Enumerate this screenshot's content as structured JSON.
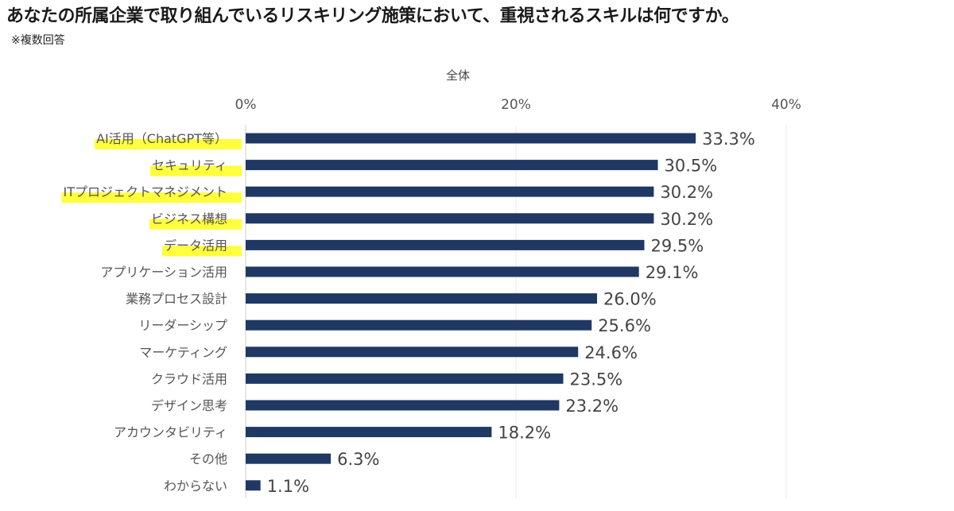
{
  "header": {
    "title": "あなたの所属企業で取り組んでいるリスキリング施策において、重視されるスキルは何ですか。",
    "note": "※複数回答"
  },
  "colors": {
    "bar": "#1f3864",
    "highlight": "#ffff33",
    "gridline": "#e8e8e8"
  },
  "chart_data": {
    "type": "bar",
    "orientation": "horizontal",
    "title": "全体",
    "categories": [
      "AI活用（ChatGPT等）",
      "セキュリティ",
      "ITプロジェクトマネジメント",
      "ビジネス構想",
      "データ活用",
      "アプリケーション活用",
      "業務プロセス設計",
      "リーダーシップ",
      "マーケティング",
      "クラウド活用",
      "デザイン思考",
      "アカウンタビリティ",
      "その他",
      "わからない"
    ],
    "values": [
      33.3,
      30.5,
      30.2,
      30.2,
      29.5,
      29.1,
      26.0,
      25.6,
      24.6,
      23.5,
      23.2,
      18.2,
      6.3,
      1.1
    ],
    "value_labels": [
      "33.3%",
      "30.5%",
      "30.2%",
      "30.2%",
      "29.5%",
      "29.1%",
      "26.0%",
      "25.6%",
      "24.6%",
      "23.5%",
      "23.2%",
      "18.2%",
      "6.3%",
      "1.1%"
    ],
    "highlighted": [
      true,
      true,
      true,
      true,
      true,
      false,
      false,
      false,
      false,
      false,
      false,
      false,
      false,
      false
    ],
    "xlim": [
      0,
      40
    ],
    "xticks": [
      0,
      20,
      40
    ],
    "xtick_labels": [
      "0%",
      "20%",
      "40%"
    ],
    "axis_position": "top",
    "grid": true,
    "legend": "none"
  }
}
